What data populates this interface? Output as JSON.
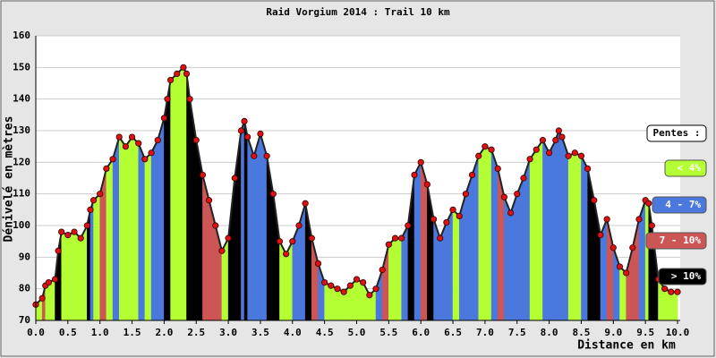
{
  "chart_data": {
    "type": "area",
    "title": "Raid Vorgium 2014 : Trail 10 km",
    "x_label": "Distance en km",
    "y_label": "Dénivelé en mètres",
    "x": [
      0.0,
      0.1,
      0.15,
      0.2,
      0.3,
      0.35,
      0.4,
      0.5,
      0.6,
      0.7,
      0.8,
      0.85,
      0.9,
      1.0,
      1.1,
      1.2,
      1.3,
      1.4,
      1.5,
      1.6,
      1.7,
      1.8,
      1.9,
      2.0,
      2.05,
      2.1,
      2.2,
      2.3,
      2.35,
      2.4,
      2.5,
      2.6,
      2.7,
      2.8,
      2.9,
      3.0,
      3.1,
      3.2,
      3.25,
      3.3,
      3.4,
      3.5,
      3.6,
      3.7,
      3.8,
      3.9,
      4.0,
      4.1,
      4.2,
      4.3,
      4.4,
      4.5,
      4.6,
      4.7,
      4.8,
      4.9,
      5.0,
      5.1,
      5.2,
      5.3,
      5.4,
      5.5,
      5.6,
      5.7,
      5.8,
      5.9,
      6.0,
      6.1,
      6.2,
      6.3,
      6.4,
      6.5,
      6.6,
      6.7,
      6.8,
      6.9,
      7.0,
      7.1,
      7.2,
      7.3,
      7.4,
      7.5,
      7.6,
      7.7,
      7.8,
      7.9,
      8.0,
      8.1,
      8.15,
      8.2,
      8.3,
      8.4,
      8.5,
      8.6,
      8.7,
      8.8,
      8.9,
      9.0,
      9.1,
      9.2,
      9.3,
      9.4,
      9.5,
      9.55,
      9.6,
      9.7,
      9.8,
      9.9,
      10.0
    ],
    "series": [
      {
        "color": "#dd1111",
        "values": [
          75,
          77,
          81,
          82,
          83,
          92,
          98,
          97,
          98,
          96,
          100,
          105,
          108,
          110,
          118,
          121,
          128,
          125,
          128,
          126,
          121,
          123,
          127,
          134,
          140,
          146,
          148,
          150,
          148,
          140,
          127,
          116,
          108,
          100,
          92,
          96,
          115,
          130,
          133,
          128,
          122,
          129,
          122,
          110,
          95,
          91,
          95,
          100,
          107,
          96,
          88,
          82,
          81,
          80,
          79,
          81,
          83,
          82,
          78,
          80,
          86,
          94,
          96,
          96,
          100,
          116,
          120,
          113,
          102,
          96,
          101,
          105,
          103,
          110,
          116,
          122,
          125,
          124,
          118,
          109,
          104,
          110,
          115,
          121,
          124,
          127,
          123,
          127,
          130,
          128,
          122,
          123,
          122,
          118,
          108,
          97,
          102,
          93,
          87,
          85,
          93,
          102,
          108,
          107,
          100,
          83,
          80,
          79,
          79
        ]
      }
    ],
    "xlim": [
      0,
      10
    ],
    "ylim": [
      70,
      160
    ],
    "xticks": [
      {
        "value": 0,
        "label": "0.0"
      },
      {
        "value": 0.5,
        "label": "0.5"
      },
      {
        "value": 1,
        "label": "1.0"
      },
      {
        "value": 1.5,
        "label": "1.5"
      },
      {
        "value": 2,
        "label": "2.0"
      },
      {
        "value": 2.5,
        "label": "2.5"
      },
      {
        "value": 3,
        "label": "3.0"
      },
      {
        "value": 3.5,
        "label": "3.5"
      },
      {
        "value": 4,
        "label": "4.0"
      },
      {
        "value": 4.5,
        "label": "4.5"
      },
      {
        "value": 5,
        "label": "5.0"
      },
      {
        "value": 5.5,
        "label": "5.5"
      },
      {
        "value": 6,
        "label": "6.0"
      },
      {
        "value": 6.5,
        "label": "6.5"
      },
      {
        "value": 7,
        "label": "7.0"
      },
      {
        "value": 7.5,
        "label": "7.5"
      },
      {
        "value": 8,
        "label": "8.0"
      },
      {
        "value": 8.5,
        "label": "8.5"
      },
      {
        "value": 9,
        "label": "9.0"
      },
      {
        "value": 9.5,
        "label": "9.5"
      },
      {
        "value": 10,
        "label": "10.0"
      }
    ],
    "yticks": [
      70,
      80,
      90,
      100,
      110,
      120,
      130,
      140,
      150,
      160
    ],
    "grid": true,
    "legend": {
      "title": "Pentes :",
      "items": [
        {
          "label": "< 4%",
          "color": "#b4ff33",
          "range": [
            null,
            4
          ]
        },
        {
          "label": "4 - 7%",
          "color": "#4a78dd",
          "range": [
            4,
            7
          ]
        },
        {
          "label": "7 - 10%",
          "color": "#cc5555",
          "range": [
            7,
            10
          ]
        },
        {
          "label": "> 10%",
          "color": "#000000",
          "range": [
            10,
            null
          ]
        }
      ]
    }
  }
}
